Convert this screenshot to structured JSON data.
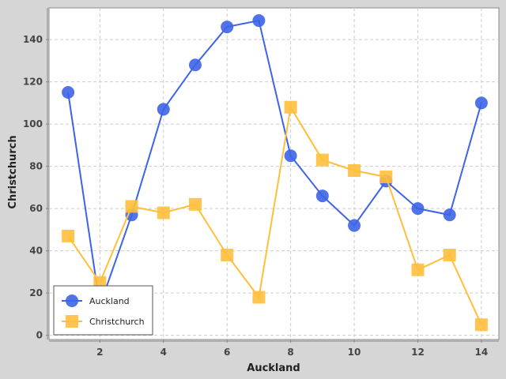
{
  "chart_data": {
    "type": "line",
    "title": "",
    "xlabel": "Auckland",
    "ylabel": "Christchurch",
    "xlim": [
      0.4,
      14.55
    ],
    "ylim": [
      -2,
      155
    ],
    "xticks": [
      2,
      4,
      6,
      8,
      10,
      12,
      14
    ],
    "yticks": [
      0,
      20,
      40,
      60,
      80,
      100,
      120,
      140
    ],
    "grid": true,
    "legend_position": "bottom-left",
    "series": [
      {
        "name": "Auckland",
        "marker": "circle",
        "color": "#3d64e8",
        "points": [
          [
            1,
            115
          ],
          [
            2,
            14
          ],
          [
            3,
            57
          ],
          [
            4,
            107
          ],
          [
            5,
            128
          ],
          [
            6,
            146
          ],
          [
            7,
            149
          ],
          [
            8,
            85
          ],
          [
            9,
            66
          ],
          [
            10,
            52
          ],
          [
            11,
            73
          ],
          [
            12,
            60
          ],
          [
            13,
            57
          ],
          [
            14,
            110
          ]
        ]
      },
      {
        "name": "Christchurch",
        "marker": "square",
        "color": "#ffbf3c",
        "points": [
          [
            1,
            47
          ],
          [
            2,
            25
          ],
          [
            3,
            61
          ],
          [
            4,
            58
          ],
          [
            5,
            62
          ],
          [
            6,
            38
          ],
          [
            7,
            18
          ],
          [
            8,
            108
          ],
          [
            9,
            83
          ],
          [
            10,
            78
          ],
          [
            11,
            75
          ],
          [
            12,
            31
          ],
          [
            13,
            38
          ],
          [
            14,
            5
          ]
        ]
      }
    ]
  }
}
